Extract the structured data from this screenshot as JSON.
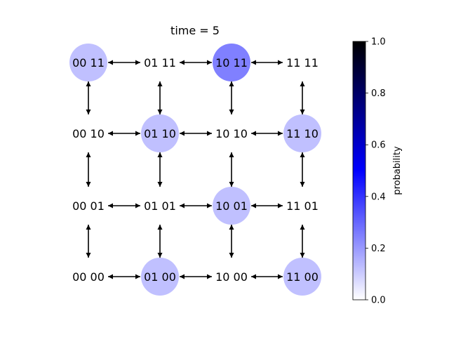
{
  "chart_data": {
    "type": "graph",
    "title": "time = 5",
    "colorbar": {
      "label": "probability",
      "range": [
        0,
        1
      ],
      "ticks": [
        "0.0",
        "0.2",
        "0.4",
        "0.6",
        "0.8",
        "1.0"
      ],
      "colors": [
        "#ffffff",
        "#0000ff",
        "#000000"
      ]
    },
    "grid": {
      "rows": [
        "11",
        "10",
        "01",
        "00"
      ],
      "cols": [
        "00",
        "01",
        "10",
        "11"
      ]
    },
    "nodes": [
      {
        "label": "00 11",
        "probability": 0.25
      },
      {
        "label": "01 11",
        "probability": 0
      },
      {
        "label": "10 11",
        "probability": 0.5
      },
      {
        "label": "11 11",
        "probability": 0
      },
      {
        "label": "00 10",
        "probability": 0
      },
      {
        "label": "01 10",
        "probability": 0.25
      },
      {
        "label": "10 10",
        "probability": 0
      },
      {
        "label": "11 10",
        "probability": 0.25
      },
      {
        "label": "00 01",
        "probability": 0
      },
      {
        "label": "01 01",
        "probability": 0
      },
      {
        "label": "10 01",
        "probability": 0.25
      },
      {
        "label": "11 01",
        "probability": 0
      },
      {
        "label": "00 00",
        "probability": 0
      },
      {
        "label": "01 00",
        "probability": 0.25
      },
      {
        "label": "10 00",
        "probability": 0
      },
      {
        "label": "11 00",
        "probability": 0.25
      }
    ],
    "edges": "bidirectional links between horizontally and vertically adjacent states"
  }
}
